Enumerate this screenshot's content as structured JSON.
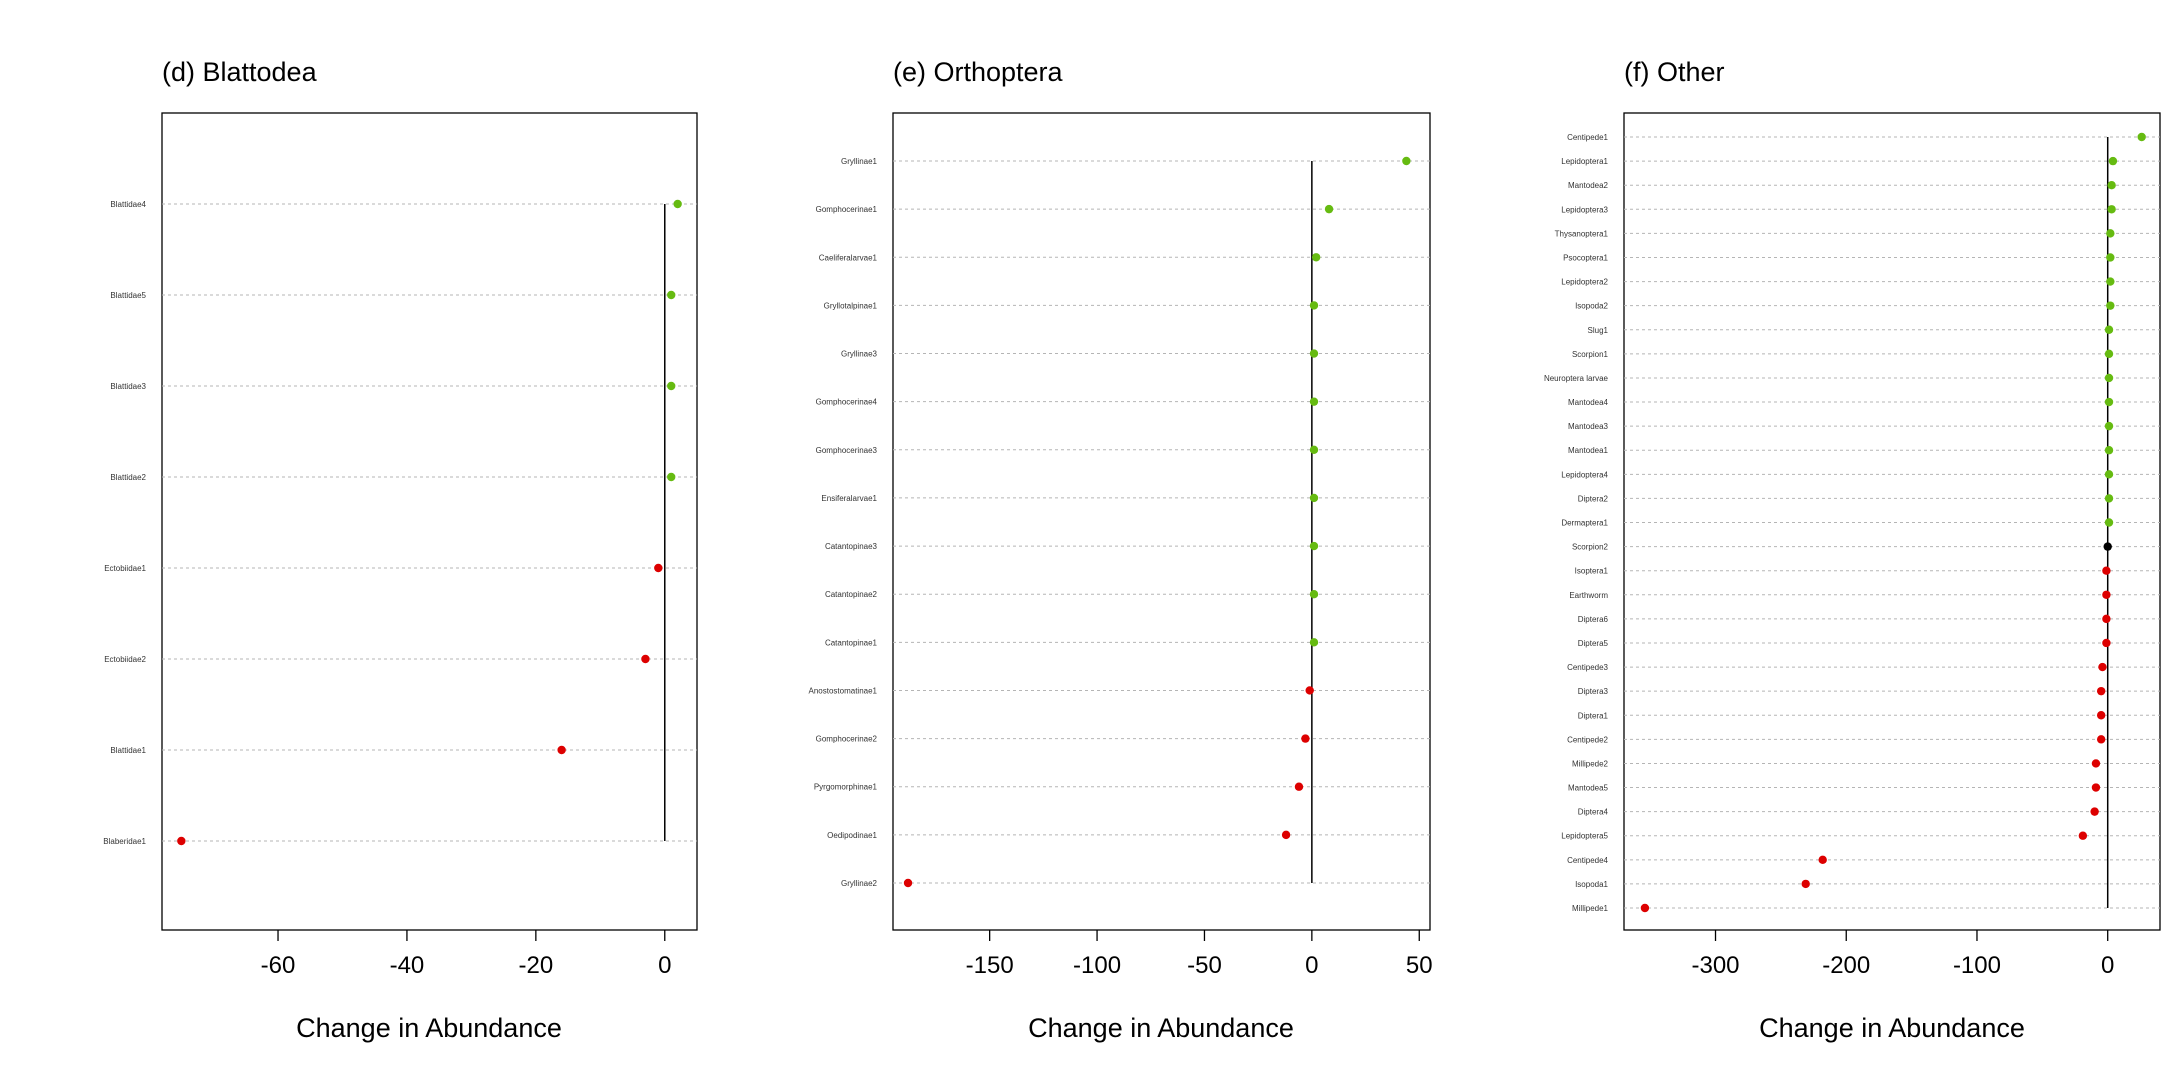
{
  "chart_data": [
    {
      "type": "scatter",
      "title": "(d) Blattodea",
      "xlabel": "Change in Abundance",
      "xlim": [
        -78,
        5
      ],
      "xticks": [
        -60,
        -40,
        -20,
        0
      ],
      "colors": {
        "positive": "#66bb11",
        "negative": "#dd0000",
        "zero": "#000000"
      },
      "points": [
        {
          "label": "Blattidae4",
          "value": 2
        },
        {
          "label": "Blattidae5",
          "value": 1
        },
        {
          "label": "Blattidae3",
          "value": 1
        },
        {
          "label": "Blattidae2",
          "value": 1
        },
        {
          "label": "Ectobiidae1",
          "value": -1
        },
        {
          "label": "Ectobiidae2",
          "value": -3
        },
        {
          "label": "Blattidae1",
          "value": -16
        },
        {
          "label": "Blaberidae1",
          "value": -75
        }
      ]
    },
    {
      "type": "scatter",
      "title": "(e) Orthoptera",
      "xlabel": "Change in Abundance",
      "xlim": [
        -195,
        55
      ],
      "xticks": [
        -150,
        -100,
        -50,
        0,
        50
      ],
      "colors": {
        "positive": "#66bb11",
        "negative": "#dd0000",
        "zero": "#000000"
      },
      "points": [
        {
          "label": "Gryllinae1",
          "value": 44
        },
        {
          "label": "Gomphocerinae1",
          "value": 8
        },
        {
          "label": "Caeliferalarvae1",
          "value": 2
        },
        {
          "label": "Gryllotalpinae1",
          "value": 1
        },
        {
          "label": "Gryllinae3",
          "value": 1
        },
        {
          "label": "Gomphocerinae4",
          "value": 1
        },
        {
          "label": "Gomphocerinae3",
          "value": 1
        },
        {
          "label": "Ensiferalarvae1",
          "value": 1
        },
        {
          "label": "Catantopinae3",
          "value": 1
        },
        {
          "label": "Catantopinae2",
          "value": 1
        },
        {
          "label": "Catantopinae1",
          "value": 1
        },
        {
          "label": "Anostostomatinae1",
          "value": -1
        },
        {
          "label": "Gomphocerinae2",
          "value": -3
        },
        {
          "label": "Pyrgomorphinae1",
          "value": -6
        },
        {
          "label": "Oedipodinae1",
          "value": -12
        },
        {
          "label": "Gryllinae2",
          "value": -188
        }
      ]
    },
    {
      "type": "scatter",
      "title": "(f) Other",
      "xlabel": "Change in Abundance",
      "xlim": [
        -370,
        40
      ],
      "xticks": [
        -300,
        -200,
        -100,
        0
      ],
      "colors": {
        "positive": "#66bb11",
        "negative": "#dd0000",
        "zero": "#000000"
      },
      "points": [
        {
          "label": "Centipede1",
          "value": 26
        },
        {
          "label": "Lepidoptera1",
          "value": 4
        },
        {
          "label": "Mantodea2",
          "value": 3
        },
        {
          "label": "Lepidoptera3",
          "value": 3
        },
        {
          "label": "Thysanoptera1",
          "value": 2
        },
        {
          "label": "Psocoptera1",
          "value": 2
        },
        {
          "label": "Lepidoptera2",
          "value": 2
        },
        {
          "label": "Isopoda2",
          "value": 2
        },
        {
          "label": "Slug1",
          "value": 1
        },
        {
          "label": "Scorpion1",
          "value": 1
        },
        {
          "label": "Neuroptera larvae",
          "value": 1
        },
        {
          "label": "Mantodea4",
          "value": 1
        },
        {
          "label": "Mantodea3",
          "value": 1
        },
        {
          "label": "Mantodea1",
          "value": 1
        },
        {
          "label": "Lepidoptera4",
          "value": 1
        },
        {
          "label": "Diptera2",
          "value": 1
        },
        {
          "label": "Dermaptera1",
          "value": 1
        },
        {
          "label": "Scorpion2",
          "value": 0
        },
        {
          "label": "Isoptera1",
          "value": -1
        },
        {
          "label": "Earthworm",
          "value": -1
        },
        {
          "label": "Diptera6",
          "value": -1
        },
        {
          "label": "Diptera5",
          "value": -1
        },
        {
          "label": "Centipede3",
          "value": -4
        },
        {
          "label": "Diptera3",
          "value": -5
        },
        {
          "label": "Diptera1",
          "value": -5
        },
        {
          "label": "Centipede2",
          "value": -5
        },
        {
          "label": "Millipede2",
          "value": -9
        },
        {
          "label": "Mantodea5",
          "value": -9
        },
        {
          "label": "Diptera4",
          "value": -10
        },
        {
          "label": "Lepidoptera5",
          "value": -19
        },
        {
          "label": "Centipede4",
          "value": -218
        },
        {
          "label": "Isopoda1",
          "value": -231
        },
        {
          "label": "Millipede1",
          "value": -354
        }
      ]
    }
  ]
}
